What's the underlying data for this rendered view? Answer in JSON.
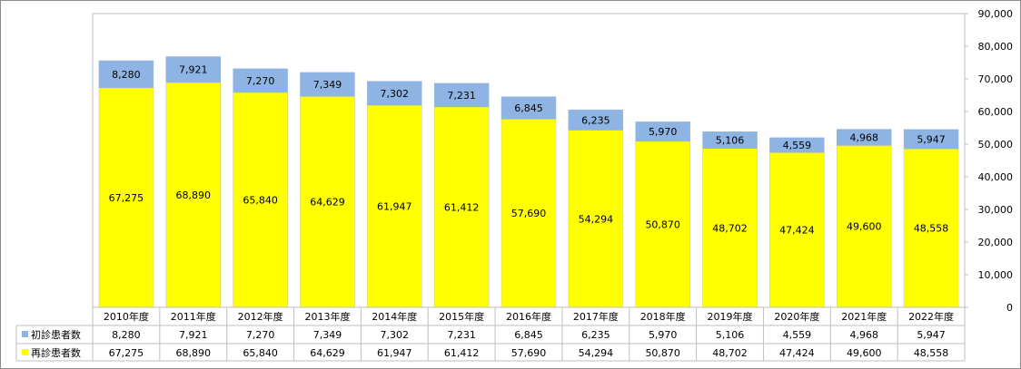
{
  "chart_data": {
    "type": "bar",
    "stacked": true,
    "categories": [
      "2010年度",
      "2011年度",
      "2012年度",
      "2013年度",
      "2014年度",
      "2015年度",
      "2016年度",
      "2017年度",
      "2018年度",
      "2019年度",
      "2020年度",
      "2021年度",
      "2022年度"
    ],
    "series": [
      {
        "name": "再診患者数",
        "color": "#ffff00",
        "values": [
          67275,
          68890,
          65840,
          64629,
          61947,
          61412,
          57690,
          54294,
          50870,
          48702,
          47424,
          49600,
          48558
        ],
        "labels": [
          "67,275",
          "68,890",
          "65,840",
          "64,629",
          "61,947",
          "61,412",
          "57,690",
          "54,294",
          "50,870",
          "48,702",
          "47,424",
          "49,600",
          "48,558"
        ]
      },
      {
        "name": "初診患者数",
        "color": "#8db4e2",
        "values": [
          8280,
          7921,
          7270,
          7349,
          7302,
          7231,
          6845,
          6235,
          5970,
          5106,
          4559,
          4968,
          5947
        ],
        "labels": [
          "8,280",
          "7,921",
          "7,270",
          "7,349",
          "7,302",
          "7,231",
          "6,845",
          "6,235",
          "5,970",
          "5,106",
          "4,559",
          "4,968",
          "5,947"
        ]
      }
    ],
    "table_rows": [
      {
        "legend": "初診患者数",
        "color": "#8db4e2",
        "series_index": 1
      },
      {
        "legend": "再診患者数",
        "color": "#ffff00",
        "series_index": 0
      }
    ],
    "y_axis": {
      "position": "right",
      "min": 0,
      "max": 90000,
      "step": 10000,
      "tick_labels": [
        "0",
        "10,000",
        "20,000",
        "30,000",
        "40,000",
        "50,000",
        "60,000",
        "70,000",
        "80,000",
        "90,000"
      ]
    },
    "grid": false,
    "legend": "data-table"
  }
}
